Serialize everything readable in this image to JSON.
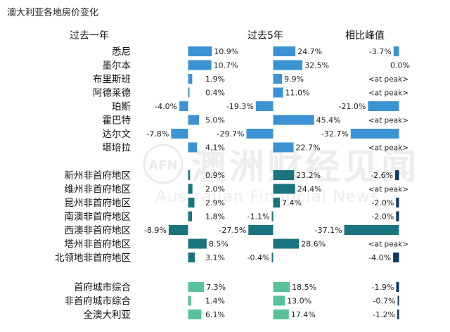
{
  "title": "澳大利亚各地房价变化",
  "columns": [
    "过去一年",
    "过去5年",
    "相比峰值"
  ],
  "watermark": {
    "logo": "AFN",
    "cn": "澳洲财经见闻",
    "en": "Australian Financial News"
  },
  "peak_label": "<at peak>",
  "colors": {
    "major": "#3b93d3",
    "regional": "#1a7480",
    "aggregate": "#59c29a",
    "peak_bar": "#0f3a63"
  },
  "chart_data": {
    "type": "bar",
    "title": "澳大利亚各地房价变化",
    "unit": "%",
    "groups": [
      {
        "name": "major",
        "rows": [
          {
            "region": "悉尼",
            "y1": 10.9,
            "y5": 24.7,
            "peak": -3.7
          },
          {
            "region": "墨尔本",
            "y1": 10.7,
            "y5": 32.5,
            "peak": 0.0
          },
          {
            "region": "布里斯班",
            "y1": 1.9,
            "y5": 9.9,
            "peak": null
          },
          {
            "region": "阿德莱德",
            "y1": 0.4,
            "y5": 11.0,
            "peak": null
          },
          {
            "region": "珀斯",
            "y1": -4.0,
            "y5": -19.3,
            "peak": -21.0
          },
          {
            "region": "霍巴特",
            "y1": 5.0,
            "y5": 45.4,
            "peak": null
          },
          {
            "region": "达尔文",
            "y1": -7.8,
            "y5": -29.7,
            "peak": -32.7
          },
          {
            "region": "堪培拉",
            "y1": 4.1,
            "y5": 22.7,
            "peak": null
          }
        ]
      },
      {
        "name": "regional",
        "rows": [
          {
            "region": "新州非首府地区",
            "y1": 0.9,
            "y5": 23.2,
            "peak": -2.6
          },
          {
            "region": "维州非首府地区",
            "y1": 2.0,
            "y5": 24.4,
            "peak": null
          },
          {
            "region": "昆州非首府地区",
            "y1": 2.9,
            "y5": 7.4,
            "peak": -2.0
          },
          {
            "region": "南澳非首府地区",
            "y1": 1.8,
            "y5": -1.1,
            "peak": -2.0
          },
          {
            "region": "西澳非首府地区",
            "y1": -8.9,
            "y5": -27.5,
            "peak": -37.1
          },
          {
            "region": "塔州非首府地区",
            "y1": 8.5,
            "y5": 28.6,
            "peak": null
          },
          {
            "region": "北领地非首府地区",
            "y1": 3.1,
            "y5": -0.4,
            "peak": -4.0
          }
        ]
      },
      {
        "name": "aggregate",
        "rows": [
          {
            "region": "首府城市综合",
            "y1": 7.3,
            "y5": 18.5,
            "peak": -1.9
          },
          {
            "region": "非首府城市综合",
            "y1": 1.4,
            "y5": 13.0,
            "peak": -0.7
          },
          {
            "region": "全澳大利亚",
            "y1": 6.1,
            "y5": 17.4,
            "peak": -1.2
          }
        ]
      }
    ]
  }
}
